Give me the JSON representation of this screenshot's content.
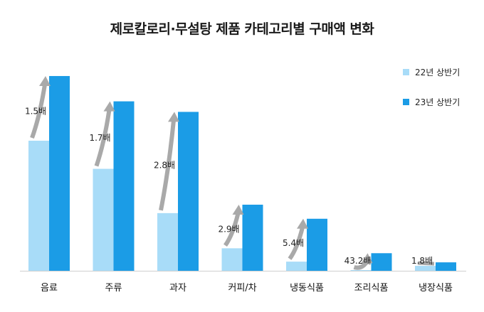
{
  "chart_data": {
    "type": "bar",
    "title": "제로칼로리·무설탕 제품 카테고리별 구매액 변화",
    "categories": [
      "음료",
      "주류",
      "과자",
      "커피/차",
      "냉동식품",
      "조리식품",
      "냉장식품"
    ],
    "series": [
      {
        "name": "22년 상반기",
        "color": "#a8dcf8",
        "values": [
          185,
          145,
          82,
          32,
          13,
          0.6,
          7
        ]
      },
      {
        "name": "23년 상반기",
        "color": "#1b9ce6",
        "values": [
          277,
          241,
          226,
          94,
          74,
          25,
          12
        ]
      }
    ],
    "annotations": [
      "1.5배",
      "1.7배",
      "2.8배",
      "2.9배",
      "5.4배",
      "43.2배",
      "1.8배"
    ],
    "arrow_color": "#a9a9a9",
    "ylim": [
      0,
      280
    ],
    "legend_position": "top-right",
    "grid": false
  }
}
